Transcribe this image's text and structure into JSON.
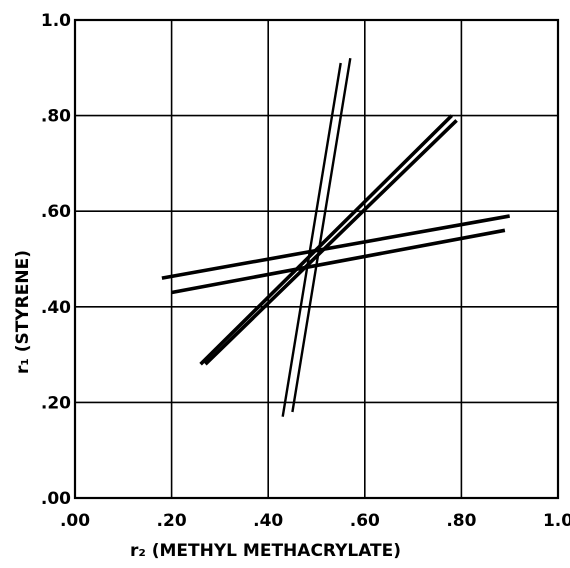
{
  "chart_data": {
    "type": "line",
    "title": "",
    "xlabel": "r₂ (METHYL   METHACRYLATE)",
    "ylabel": "r₁ (STYRENE)",
    "xlim": [
      0,
      1.0
    ],
    "ylim": [
      0,
      1.0
    ],
    "x_ticks": [
      ".00",
      ".20",
      ".40",
      ".60",
      ".80",
      "1.0"
    ],
    "y_ticks": [
      ".00",
      ".20",
      ".40",
      ".60",
      ".80",
      "1.0"
    ],
    "grid": true,
    "legend": "none",
    "series": [
      {
        "x": [
          0.43,
          0.55
        ],
        "y": [
          0.17,
          0.91
        ]
      },
      {
        "x": [
          0.45,
          0.57
        ],
        "y": [
          0.18,
          0.92
        ]
      },
      {
        "x": [
          0.26,
          0.78
        ],
        "y": [
          0.28,
          0.8
        ]
      },
      {
        "x": [
          0.27,
          0.79
        ],
        "y": [
          0.28,
          0.79
        ]
      },
      {
        "x": [
          0.18,
          0.9
        ],
        "y": [
          0.46,
          0.59
        ]
      },
      {
        "x": [
          0.2,
          0.89
        ],
        "y": [
          0.43,
          0.56
        ]
      }
    ]
  }
}
